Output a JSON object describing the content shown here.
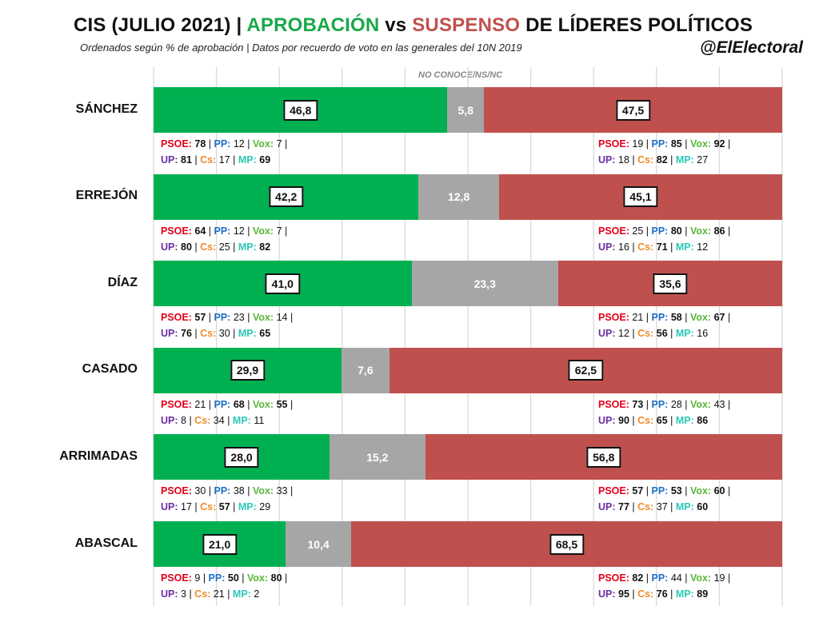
{
  "header": {
    "title_prefix": "CIS (JULIO 2021) | ",
    "title_appr": "APROBACIÓN",
    "title_vs": " vs ",
    "title_susp": "SUSPENSO",
    "title_suffix": " DE LÍDERES POLÍTICOS",
    "subtitle": "Ordenados según % de aprobación | Datos por recuerdo de voto en las generales del 10N 2019",
    "handle": "@ElElectoral",
    "nsnc_label": "NO CONOCE/NS/NC"
  },
  "colors": {
    "approval": "#00b050",
    "no_answer": "#a6a6a6",
    "disapproval": "#c0504d",
    "psoe": "#e3001b",
    "pp": "#1e6fc6",
    "vox": "#5bb83a",
    "up": "#6b2fa0",
    "cs": "#f08a2c",
    "mp": "#2ac8b8"
  },
  "party_labels": {
    "psoe": "PSOE",
    "pp": "PP",
    "vox": "Vox",
    "up": "UP",
    "cs": "Cs",
    "mp": "MP"
  },
  "chart_data": {
    "type": "bar",
    "stacked": true,
    "orientation": "horizontal",
    "xlim": [
      0,
      100
    ],
    "grid": true,
    "categories": [
      "SÁNCHEZ",
      "ERREJÓN",
      "DÍAZ",
      "CASADO",
      "ARRIMADAS",
      "ABASCAL"
    ],
    "series": [
      {
        "name": "APROBACIÓN",
        "values": [
          "46,8",
          "42,2",
          "41,0",
          "29,9",
          "28,0",
          "21,0"
        ]
      },
      {
        "name": "NO CONOCE/NS/NC",
        "values": [
          "5,8",
          "12,8",
          "23,3",
          "7,6",
          "15,2",
          "10,4"
        ]
      },
      {
        "name": "SUSPENSO",
        "values": [
          "47,5",
          "45,1",
          "35,6",
          "62,5",
          "56,8",
          "68,5"
        ]
      }
    ],
    "by_party_vote": [
      {
        "approval": {
          "psoe": "78",
          "pp": "12",
          "vox": "7",
          "up": "81",
          "cs": "17",
          "mp": "69"
        },
        "approval_bold": [
          "psoe",
          "up",
          "mp"
        ],
        "disapproval": {
          "psoe": "19",
          "pp": "85",
          "vox": "92",
          "up": "18",
          "cs": "82",
          "mp": "27"
        },
        "disapproval_bold": [
          "pp",
          "vox",
          "cs"
        ]
      },
      {
        "approval": {
          "psoe": "64",
          "pp": "12",
          "vox": "7",
          "up": "80",
          "cs": "25",
          "mp": "82"
        },
        "approval_bold": [
          "psoe",
          "up",
          "mp"
        ],
        "disapproval": {
          "psoe": "25",
          "pp": "80",
          "vox": "86",
          "up": "16",
          "cs": "71",
          "mp": "12"
        },
        "disapproval_bold": [
          "pp",
          "vox",
          "cs"
        ]
      },
      {
        "approval": {
          "psoe": "57",
          "pp": "23",
          "vox": "14",
          "up": "76",
          "cs": "30",
          "mp": "65"
        },
        "approval_bold": [
          "psoe",
          "up",
          "mp"
        ],
        "disapproval": {
          "psoe": "21",
          "pp": "58",
          "vox": "67",
          "up": "12",
          "cs": "56",
          "mp": "16"
        },
        "disapproval_bold": [
          "pp",
          "vox",
          "cs"
        ]
      },
      {
        "approval": {
          "psoe": "21",
          "pp": "68",
          "vox": "55",
          "up": "8",
          "cs": "34",
          "mp": "11"
        },
        "approval_bold": [
          "pp",
          "vox"
        ],
        "disapproval": {
          "psoe": "73",
          "pp": "28",
          "vox": "43",
          "up": "90",
          "cs": "65",
          "mp": "86"
        },
        "disapproval_bold": [
          "psoe",
          "up",
          "cs",
          "mp"
        ]
      },
      {
        "approval": {
          "psoe": "30",
          "pp": "38",
          "vox": "33",
          "up": "17",
          "cs": "57",
          "mp": "29"
        },
        "approval_bold": [
          "cs"
        ],
        "disapproval": {
          "psoe": "57",
          "pp": "53",
          "vox": "60",
          "up": "77",
          "cs": "37",
          "mp": "60"
        },
        "disapproval_bold": [
          "psoe",
          "pp",
          "vox",
          "up",
          "mp"
        ]
      },
      {
        "approval": {
          "psoe": "9",
          "pp": "50",
          "vox": "80",
          "up": "3",
          "cs": "21",
          "mp": "2"
        },
        "approval_bold": [
          "pp",
          "vox"
        ],
        "disapproval": {
          "psoe": "82",
          "pp": "44",
          "vox": "19",
          "up": "95",
          "cs": "76",
          "mp": "89"
        },
        "disapproval_bold": [
          "psoe",
          "up",
          "cs",
          "mp"
        ]
      }
    ]
  }
}
